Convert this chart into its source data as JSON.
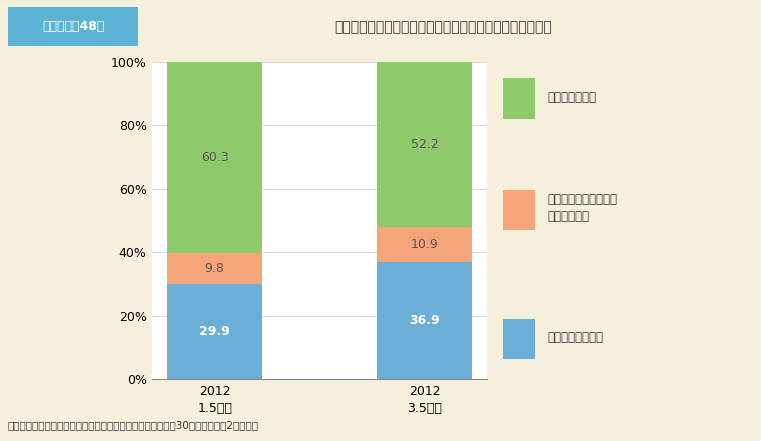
{
  "categories": [
    "2012\n1.5年後",
    "2012\n3.5年後"
  ],
  "tenure": [
    29.9,
    36.9
  ],
  "tenure_track": [
    9.8,
    10.9
  ],
  "fixed_term": [
    60.3,
    52.2
  ],
  "colors": {
    "tenure": "#6BAED6",
    "tenure_track": "#F5A57A",
    "fixed_term": "#8FCA6A"
  },
  "legend_labels_fixed": "任期制雇用の者",
  "legend_labels_track": "テニュアトラック制に\nよる雇用の者",
  "legend_labels_tenure": "テニュア雇用の者",
  "title": "大学等と公的研究機関に雇用される者の任期制雇用の状況",
  "title_label": "第１－１－48図",
  "footer": "資料：科学技術・学術政策研究所「博士人材追跡調査（平成30年２月）」第2次報告書",
  "bg_color": "#F5F0DC",
  "header_label_bg": "#5BB4D4",
  "header_border": "#82CDEA",
  "plot_bg": "#FFFFFF",
  "ylim": [
    0,
    100
  ],
  "yticks": [
    0,
    20,
    40,
    60,
    80,
    100
  ],
  "bar_width": 0.45
}
